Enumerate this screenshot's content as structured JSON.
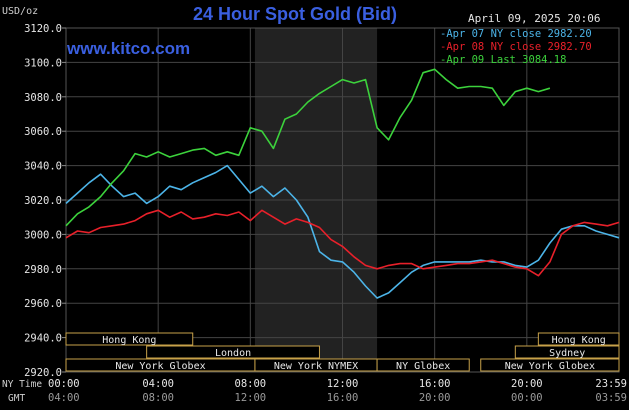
{
  "chart_data": {
    "type": "line",
    "title": "24 Hour Spot Gold (Bid)",
    "brand": "www.kitco.com",
    "units_label": "USD/oz",
    "datetime": "April 09, 2025 20:06",
    "ylim": [
      2920,
      3120
    ],
    "yticks": [
      "3120.0",
      "3100.0",
      "3080.0",
      "3060.0",
      "3040.0",
      "3020.0",
      "3000.0",
      "2980.0",
      "2960.0",
      "2940.0",
      "2920.0"
    ],
    "x_row_ny_label": "NY Time",
    "x_row_gmt_label": "GMT",
    "xticks_ny": [
      "00:00",
      "04:00",
      "08:00",
      "12:00",
      "16:00",
      "20:00",
      "23:59"
    ],
    "xticks_gmt": [
      "04:00",
      "08:00",
      "12:00",
      "16:00",
      "20:00",
      "00:00",
      "03:59"
    ],
    "grid": true,
    "shaded_session": {
      "label": "New York NYMEX",
      "start_hour": 8.2,
      "end_hour": 13.5
    },
    "legend_position": "top-right",
    "legend": [
      {
        "text": "-Apr 07 NY close 2982.20",
        "color": "#4cb4e8"
      },
      {
        "text": "-Apr 08 NY close 2982.70",
        "color": "#e8202a"
      },
      {
        "text": "-Apr 09 Last 3084.18",
        "color": "#3cd23c"
      }
    ],
    "sessions": [
      {
        "label": "Hong Kong",
        "row": 0,
        "start_hour": 0.0,
        "end_hour": 5.5
      },
      {
        "label": "Hong Kong",
        "row": 0,
        "start_hour": 20.5,
        "end_hour": 24.0
      },
      {
        "label": "London",
        "row": 1,
        "start_hour": 3.5,
        "end_hour": 11.0
      },
      {
        "label": "Sydney",
        "row": 1,
        "start_hour": 19.5,
        "end_hour": 24.0
      },
      {
        "label": "New York Globex",
        "row": 2,
        "start_hour": 0.0,
        "end_hour": 8.2
      },
      {
        "label": "New York NYMEX",
        "row": 2,
        "start_hour": 8.2,
        "end_hour": 13.5
      },
      {
        "label": "NY Globex",
        "row": 2,
        "start_hour": 13.5,
        "end_hour": 17.5
      },
      {
        "label": "New York Globex",
        "row": 2,
        "start_hour": 18.0,
        "end_hour": 24.0
      }
    ],
    "series": [
      {
        "name": "Apr 07",
        "color": "#4cb4e8",
        "x": [
          0,
          0.5,
          1,
          1.5,
          2,
          2.5,
          3,
          3.5,
          4,
          4.5,
          5,
          5.5,
          6,
          6.5,
          7,
          7.5,
          8,
          8.5,
          9,
          9.5,
          10,
          10.5,
          11,
          11.5,
          12,
          12.5,
          13,
          13.5,
          14,
          14.5,
          15,
          15.5,
          16,
          16.5,
          17,
          17.5,
          18,
          18.5,
          19,
          19.5,
          20,
          20.5,
          21,
          21.5,
          22,
          22.5,
          23,
          23.5,
          24
        ],
        "y": [
          3018,
          3024,
          3030,
          3035,
          3028,
          3022,
          3024,
          3018,
          3022,
          3028,
          3026,
          3030,
          3033,
          3036,
          3040,
          3032,
          3024,
          3028,
          3022,
          3027,
          3020,
          3010,
          2990,
          2985,
          2984,
          2978,
          2970,
          2963,
          2966,
          2972,
          2978,
          2982,
          2984,
          2984,
          2984,
          2984,
          2985,
          2984,
          2984,
          2982,
          2981,
          2985,
          2995,
          3003,
          3005,
          3005,
          3002,
          3000,
          2998
        ]
      },
      {
        "name": "Apr 08",
        "color": "#e8202a",
        "x": [
          0,
          0.5,
          1,
          1.5,
          2,
          2.5,
          3,
          3.5,
          4,
          4.5,
          5,
          5.5,
          6,
          6.5,
          7,
          7.5,
          8,
          8.5,
          9,
          9.5,
          10,
          10.5,
          11,
          11.5,
          12,
          12.5,
          13,
          13.5,
          14,
          14.5,
          15,
          15.5,
          16,
          16.5,
          17,
          17.5,
          18,
          18.5,
          19,
          19.5,
          20,
          20.5,
          21,
          21.5,
          22,
          22.5,
          23,
          23.5,
          24
        ],
        "y": [
          2998,
          3002,
          3001,
          3004,
          3005,
          3006,
          3008,
          3012,
          3014,
          3010,
          3013,
          3009,
          3010,
          3012,
          3011,
          3013,
          3008,
          3014,
          3010,
          3006,
          3009,
          3007,
          3004,
          2997,
          2993,
          2987,
          2982,
          2980,
          2982,
          2983,
          2983,
          2980,
          2981,
          2982,
          2983,
          2983,
          2984,
          2985,
          2983,
          2981,
          2980,
          2976,
          2984,
          3000,
          3005,
          3007,
          3006,
          3005,
          3007
        ]
      },
      {
        "name": "Apr 09",
        "color": "#3cd23c",
        "x": [
          0,
          0.5,
          1,
          1.5,
          2,
          2.5,
          3,
          3.5,
          4,
          4.5,
          5,
          5.5,
          6,
          6.5,
          7,
          7.5,
          8,
          8.5,
          9,
          9.5,
          10,
          10.5,
          11,
          11.5,
          12,
          12.5,
          13,
          13.5,
          14,
          14.5,
          15,
          15.5,
          16,
          16.5,
          17,
          17.5,
          18,
          18.5,
          19,
          19.5,
          20,
          20.5,
          21
        ],
        "y": [
          3005,
          3012,
          3016,
          3022,
          3030,
          3037,
          3047,
          3045,
          3048,
          3045,
          3047,
          3049,
          3050,
          3046,
          3048,
          3046,
          3062,
          3060,
          3050,
          3067,
          3070,
          3077,
          3082,
          3086,
          3090,
          3088,
          3090,
          3062,
          3055,
          3068,
          3078,
          3094,
          3096,
          3090,
          3085,
          3086,
          3086,
          3085,
          3075,
          3083,
          3085,
          3083,
          3085
        ]
      }
    ]
  }
}
